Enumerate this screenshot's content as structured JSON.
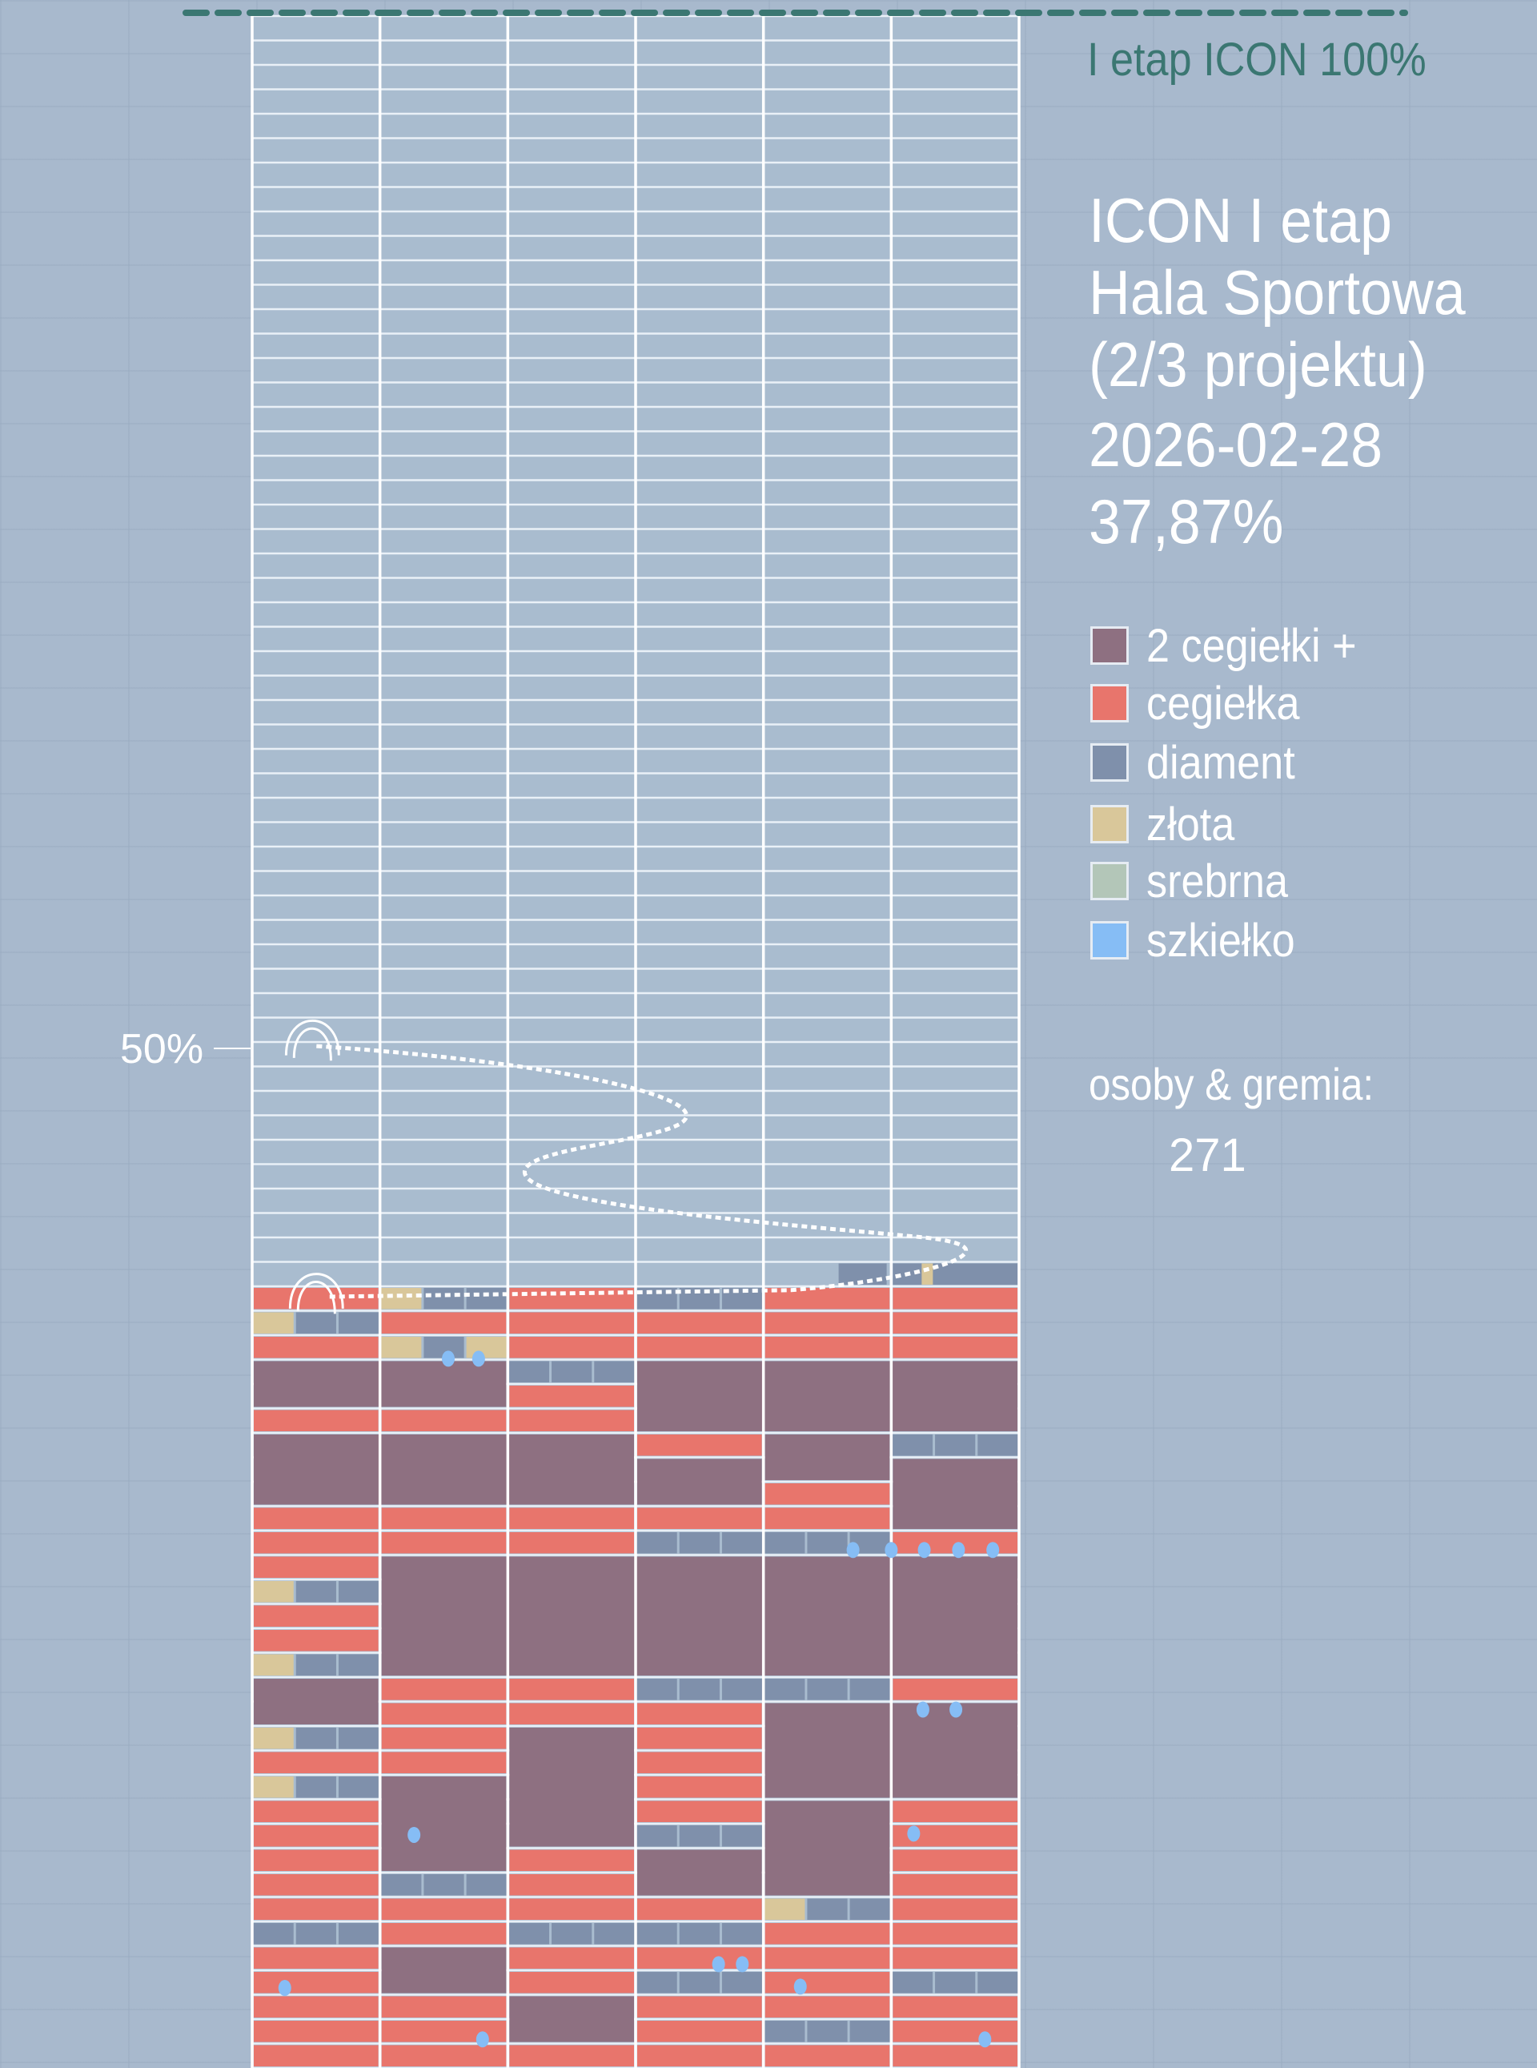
{
  "target_label": "I etap ICON 100%",
  "title_lines": [
    "ICON I etap",
    "Hala Sportowa",
    "(2/3 projektu)"
  ],
  "date": "2026-02-28",
  "progress_text": "37,87%",
  "half_marker": "50%",
  "legend": [
    {
      "label": "2 cegiełki +",
      "color": "#8e7081"
    },
    {
      "label": "cegiełka",
      "color": "#e8756c"
    },
    {
      "label": "diament",
      "color": "#7f90ab"
    },
    {
      "label": "złota",
      "color": "#d9c79a"
    },
    {
      "label": "srebrna",
      "color": "#b3c6b8"
    },
    {
      "label": "szkiełko",
      "color": "#86bdf5"
    }
  ],
  "people_label": "osoby & gremia:",
  "people_count": "271",
  "colors": {
    "target_line": "#3b7772",
    "grid_line": "#ffffff",
    "empty_cell": "#a9bccf"
  },
  "chart_data": {
    "type": "bar",
    "title": "ICON I etap Hala Sportowa (2/3 projektu)",
    "categories": [
      "ICON I etap"
    ],
    "values": [
      37.87
    ],
    "ylim": [
      0,
      100
    ],
    "annotations": [
      "50%",
      "I etap ICON 100%"
    ],
    "legend": [
      "2 cegiełki +",
      "cegiełka",
      "diament",
      "złota",
      "srebrna",
      "szkiełko"
    ],
    "grid": true
  }
}
